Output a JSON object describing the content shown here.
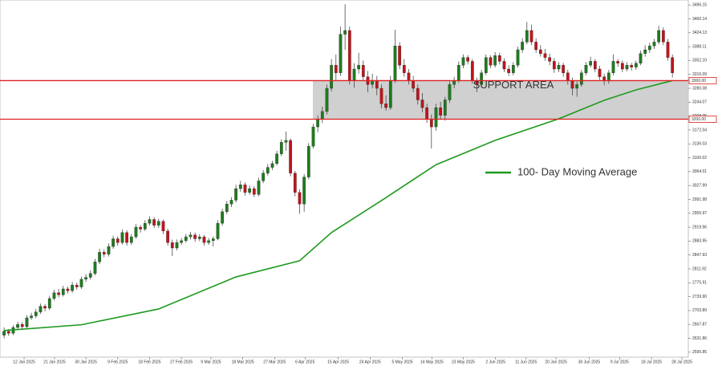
{
  "chart_data": {
    "type": "candlestick",
    "up_color": "#1e7b1e",
    "down_color": "#c0141c",
    "ylim": [
      2583,
      3509
    ],
    "xlim": [
      -0.9,
      150.5
    ],
    "yticks": [
      {
        "value": 2595.85,
        "label": "2595.85"
      },
      2631.86,
      2667.87,
      2703.89,
      {
        "value": 2739.9,
        "label": "2739.90"
      },
      2775.91,
      2811.92,
      2847.93,
      2883.95,
      2919.96,
      2955.97,
      2991.98,
      3027.99,
      3064.01,
      3100.02,
      3136.03,
      3172.04,
      3208.05,
      3244.07,
      3280.08,
      3316.09,
      {
        "value": 3352.1,
        "label": "3352.10"
      },
      3388.11,
      3424.13,
      3460.14,
      3496.15
    ],
    "xticks": [
      {
        "value": 4.4,
        "label": "12 Jan 2025"
      },
      {
        "value": 11.1,
        "label": "21 Jan 2025"
      },
      {
        "value": 18,
        "label": "30 Jan 2025"
      },
      {
        "value": 25,
        "label": "9 Feb 2025"
      },
      {
        "value": 32,
        "label": "18 Feb 2025"
      },
      {
        "value": 39,
        "label": "27 Feb 2025"
      },
      {
        "value": 45.5,
        "label": "9 Mar 2025"
      },
      {
        "value": 52.5,
        "label": "18 Mar 2025"
      },
      {
        "value": 59.5,
        "label": "27 Mar 2025"
      },
      {
        "value": 66.2,
        "label": "6 Apr 2025"
      },
      {
        "value": 73.5,
        "label": "15 Apr 2025"
      },
      {
        "value": 80.5,
        "label": "24 Apr 2025"
      },
      {
        "value": 87.6,
        "label": "5 May 2025"
      },
      {
        "value": 94.1,
        "label": "14 May 2025"
      },
      {
        "value": 101,
        "label": "23 May 2025"
      },
      {
        "value": 108.1,
        "label": "2 Jun 2025"
      },
      {
        "value": 114.8,
        "label": "11 Jun 2025"
      },
      {
        "value": 121.4,
        "label": "20 Jun 2025"
      },
      {
        "value": 128.7,
        "label": "30 Jun 2025"
      },
      {
        "value": 135.4,
        "label": "9 Jul 2025"
      },
      {
        "value": 142.4,
        "label": "18 Jul 2025"
      },
      {
        "value": 149.1,
        "label": "28 Jul 2025"
      }
    ],
    "levels": [
      {
        "value": 3300,
        "label": "3300.00"
      },
      {
        "value": 3200,
        "label": "3200.00"
      }
    ],
    "level_color": "#e02020",
    "zone_label": "SUPPORT AREA",
    "moving_average": {
      "name": "100- Day Moving Average",
      "color": "#1f9a1f",
      "x": [
        0,
        17,
        34,
        51,
        65,
        72,
        83,
        95,
        108,
        122,
        132,
        139,
        147
      ],
      "values": [
        2652,
        2667,
        2708,
        2791,
        2833,
        2906,
        2989,
        3082,
        3145,
        3201,
        3249,
        3276,
        3300
      ]
    },
    "candles": [
      [
        2640,
        2660,
        2632,
        2650
      ],
      [
        2650,
        2656,
        2638,
        2645
      ],
      [
        2645,
        2666,
        2640,
        2660
      ],
      [
        2660,
        2675,
        2654,
        2668
      ],
      [
        2668,
        2674,
        2655,
        2662
      ],
      [
        2662,
        2692,
        2658,
        2685
      ],
      [
        2685,
        2698,
        2680,
        2690
      ],
      [
        2690,
        2708,
        2684,
        2700
      ],
      [
        2700,
        2722,
        2695,
        2715
      ],
      [
        2715,
        2720,
        2702,
        2710
      ],
      [
        2710,
        2742,
        2705,
        2735
      ],
      [
        2735,
        2758,
        2730,
        2750
      ],
      [
        2750,
        2760,
        2738,
        2745
      ],
      [
        2745,
        2768,
        2740,
        2760
      ],
      [
        2760,
        2766,
        2748,
        2755
      ],
      [
        2755,
        2778,
        2750,
        2770
      ],
      [
        2770,
        2776,
        2758,
        2765
      ],
      [
        2765,
        2792,
        2760,
        2785
      ],
      [
        2785,
        2798,
        2778,
        2790
      ],
      [
        2790,
        2808,
        2784,
        2800
      ],
      [
        2800,
        2838,
        2795,
        2830
      ],
      [
        2830,
        2864,
        2824,
        2855
      ],
      [
        2855,
        2862,
        2842,
        2850
      ],
      [
        2850,
        2878,
        2844,
        2870
      ],
      [
        2870,
        2898,
        2864,
        2890
      ],
      [
        2890,
        2896,
        2872,
        2880
      ],
      [
        2880,
        2914,
        2875,
        2906
      ],
      [
        2906,
        2912,
        2872,
        2880
      ],
      [
        2880,
        2902,
        2874,
        2895
      ],
      [
        2895,
        2928,
        2890,
        2920
      ],
      [
        2920,
        2926,
        2906,
        2915
      ],
      [
        2915,
        2938,
        2910,
        2930
      ],
      [
        2930,
        2948,
        2924,
        2940
      ],
      [
        2940,
        2946,
        2918,
        2925
      ],
      [
        2925,
        2942,
        2918,
        2935
      ],
      [
        2935,
        2940,
        2902,
        2910
      ],
      [
        2910,
        2916,
        2872,
        2880
      ],
      [
        2880,
        2888,
        2845,
        2866
      ],
      [
        2866,
        2888,
        2860,
        2880
      ],
      [
        2880,
        2892,
        2874,
        2885
      ],
      [
        2885,
        2902,
        2880,
        2895
      ],
      [
        2895,
        2908,
        2888,
        2900
      ],
      [
        2900,
        2906,
        2882,
        2890
      ],
      [
        2890,
        2902,
        2884,
        2895
      ],
      [
        2895,
        2900,
        2872,
        2880
      ],
      [
        2880,
        2892,
        2874,
        2885
      ],
      [
        2885,
        2896,
        2870,
        2890
      ],
      [
        2890,
        2938,
        2886,
        2930
      ],
      [
        2930,
        2968,
        2924,
        2960
      ],
      [
        2960,
        2988,
        2954,
        2980
      ],
      [
        2980,
        2998,
        2972,
        2990
      ],
      [
        2990,
        3030,
        2984,
        3020
      ],
      [
        3020,
        3040,
        3012,
        3030
      ],
      [
        3030,
        3036,
        3002,
        3010
      ],
      [
        3010,
        3028,
        3004,
        3020
      ],
      [
        3020,
        3026,
        2998,
        3005
      ],
      [
        3005,
        3048,
        3000,
        3040
      ],
      [
        3040,
        3068,
        3034,
        3060
      ],
      [
        3060,
        3084,
        3054,
        3075
      ],
      [
        3075,
        3092,
        3068,
        3085
      ],
      [
        3085,
        3118,
        3080,
        3110
      ],
      [
        3110,
        3148,
        3104,
        3140
      ],
      [
        3140,
        3168,
        3118,
        3145
      ],
      [
        3145,
        3150,
        3052,
        3060
      ],
      [
        3060,
        3066,
        3000,
        3010
      ],
      [
        3010,
        3018,
        2955,
        2980
      ],
      [
        2980,
        3058,
        2960,
        3050
      ],
      [
        3050,
        3138,
        3044,
        3130
      ],
      [
        3130,
        3188,
        3124,
        3180
      ],
      [
        3180,
        3210,
        3166,
        3200
      ],
      [
        3200,
        3232,
        3190,
        3220
      ],
      [
        3220,
        3290,
        3212,
        3280
      ],
      [
        3280,
        3356,
        3272,
        3340
      ],
      [
        3340,
        3368,
        3300,
        3320
      ],
      [
        3320,
        3440,
        3312,
        3420
      ],
      [
        3420,
        3498,
        3380,
        3430
      ],
      [
        3430,
        3440,
        3290,
        3300
      ],
      [
        3300,
        3345,
        3282,
        3330
      ],
      [
        3330,
        3372,
        3318,
        3340
      ],
      [
        3340,
        3352,
        3300,
        3310
      ],
      [
        3310,
        3325,
        3270,
        3290
      ],
      [
        3290,
        3318,
        3280,
        3300
      ],
      [
        3300,
        3312,
        3262,
        3280
      ],
      [
        3280,
        3290,
        3228,
        3240
      ],
      [
        3240,
        3262,
        3222,
        3230
      ],
      [
        3230,
        3312,
        3224,
        3300
      ],
      [
        3300,
        3432,
        3294,
        3390
      ],
      [
        3390,
        3400,
        3330,
        3340
      ],
      [
        3340,
        3356,
        3310,
        3320
      ],
      [
        3320,
        3330,
        3290,
        3300
      ],
      [
        3300,
        3312,
        3270,
        3280
      ],
      [
        3280,
        3290,
        3238,
        3250
      ],
      [
        3250,
        3268,
        3218,
        3230
      ],
      [
        3230,
        3240,
        3190,
        3200
      ],
      [
        3200,
        3212,
        3124,
        3180
      ],
      [
        3180,
        3240,
        3170,
        3230
      ],
      [
        3230,
        3245,
        3200,
        3210
      ],
      [
        3210,
        3258,
        3196,
        3250
      ],
      [
        3250,
        3298,
        3242,
        3290
      ],
      [
        3290,
        3310,
        3280,
        3300
      ],
      [
        3300,
        3350,
        3294,
        3340
      ],
      [
        3340,
        3368,
        3332,
        3360
      ],
      [
        3360,
        3366,
        3342,
        3350
      ],
      [
        3350,
        3356,
        3292,
        3300
      ],
      [
        3300,
        3308,
        3270,
        3290
      ],
      [
        3290,
        3328,
        3284,
        3320
      ],
      [
        3320,
        3368,
        3314,
        3360
      ],
      [
        3360,
        3366,
        3332,
        3340
      ],
      [
        3340,
        3374,
        3334,
        3365
      ],
      [
        3365,
        3372,
        3342,
        3350
      ],
      [
        3350,
        3358,
        3322,
        3330
      ],
      [
        3330,
        3340,
        3312,
        3320
      ],
      [
        3320,
        3348,
        3314,
        3340
      ],
      [
        3340,
        3388,
        3334,
        3380
      ],
      [
        3380,
        3410,
        3372,
        3400
      ],
      [
        3400,
        3452,
        3394,
        3430
      ],
      [
        3430,
        3445,
        3392,
        3400
      ],
      [
        3400,
        3410,
        3372,
        3380
      ],
      [
        3380,
        3392,
        3362,
        3370
      ],
      [
        3370,
        3382,
        3352,
        3360
      ],
      [
        3360,
        3370,
        3340,
        3350
      ],
      [
        3350,
        3358,
        3320,
        3330
      ],
      [
        3330,
        3348,
        3322,
        3340
      ],
      [
        3340,
        3346,
        3310,
        3320
      ],
      [
        3320,
        3328,
        3290,
        3300
      ],
      [
        3300,
        3308,
        3262,
        3280
      ],
      [
        3280,
        3298,
        3258,
        3290
      ],
      [
        3290,
        3328,
        3284,
        3320
      ],
      [
        3320,
        3348,
        3314,
        3340
      ],
      [
        3340,
        3362,
        3334,
        3350
      ],
      [
        3350,
        3356,
        3322,
        3330
      ],
      [
        3330,
        3338,
        3302,
        3310
      ],
      [
        3310,
        3318,
        3288,
        3300
      ],
      [
        3300,
        3328,
        3292,
        3320
      ],
      [
        3320,
        3368,
        3314,
        3350
      ],
      [
        3350,
        3356,
        3336,
        3345
      ],
      [
        3345,
        3352,
        3322,
        3330
      ],
      [
        3330,
        3348,
        3324,
        3340
      ],
      [
        3340,
        3346,
        3326,
        3335
      ],
      [
        3335,
        3352,
        3328,
        3345
      ],
      [
        3345,
        3378,
        3340,
        3370
      ],
      [
        3370,
        3392,
        3362,
        3380
      ],
      [
        3380,
        3398,
        3372,
        3390
      ],
      [
        3390,
        3408,
        3382,
        3400
      ],
      [
        3400,
        3442,
        3394,
        3430
      ],
      [
        3430,
        3438,
        3392,
        3400
      ],
      [
        3400,
        3408,
        3352,
        3360
      ],
      [
        3360,
        3368,
        3308,
        3320
      ]
    ]
  }
}
